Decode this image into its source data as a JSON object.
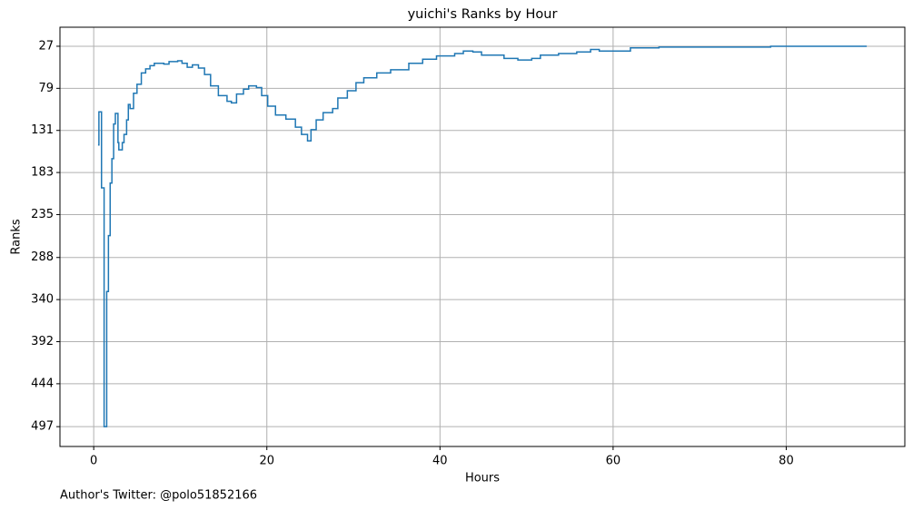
{
  "chart_data": {
    "type": "step",
    "title": "yuichi's Ranks by Hour",
    "x_label": "Hours",
    "y_label": "Ranks",
    "footer": "Author's Twitter: @polo51852166",
    "series": [
      {
        "color": "#1f77b4",
        "x": [
          0.5,
          0.6,
          0.9,
          1.2,
          1.5,
          1.7,
          1.9,
          2.1,
          2.3,
          2.5,
          2.8,
          2.9,
          3.3,
          3.5,
          3.8,
          4.0,
          4.2,
          4.6,
          5.0,
          5.5,
          6.0,
          6.5,
          7.0,
          8.1,
          8.7,
          9.7,
          10.2,
          10.8,
          11.4,
          12.1,
          12.8,
          13.5,
          14.4,
          15.4,
          15.9,
          16.5,
          17.3,
          17.9,
          18.8,
          19.4,
          20.1,
          21.0,
          22.2,
          23.3,
          24.0,
          24.7,
          25.1,
          25.7,
          26.5,
          27.6,
          28.2,
          29.3,
          30.3,
          31.2,
          32.7,
          34.3,
          36.4,
          38.0,
          39.6,
          41.7,
          42.7,
          43.8,
          44.8,
          47.4,
          49.0,
          50.6,
          51.6,
          53.7,
          55.8,
          57.4,
          58.4,
          62.0,
          65.3,
          78.2,
          89.3
        ],
        "values": [
          149,
          108,
          202,
          497,
          330,
          261,
          196,
          166,
          123,
          110,
          146,
          155,
          146,
          136,
          118,
          99,
          104,
          85,
          74,
          60,
          55,
          51,
          48,
          49,
          46,
          45,
          48,
          53,
          50,
          54,
          62,
          76,
          88,
          95,
          97,
          86,
          80,
          76,
          78,
          88,
          101,
          112,
          117,
          127,
          136,
          144,
          130,
          118,
          109,
          104,
          91,
          82,
          72,
          66,
          60,
          56,
          48,
          43,
          39,
          36,
          33,
          34,
          38,
          42,
          44,
          42,
          38,
          36,
          34,
          31,
          33,
          29,
          28,
          27,
          27
        ]
      }
    ],
    "xlim": [
      -3.9,
      93.7
    ],
    "xticks": [
      0,
      20,
      40,
      60,
      80
    ],
    "ylim": [
      521.5,
      3.5
    ],
    "yticks": [
      27,
      79,
      131,
      183,
      235,
      288,
      340,
      392,
      444,
      497
    ],
    "grid": true
  }
}
